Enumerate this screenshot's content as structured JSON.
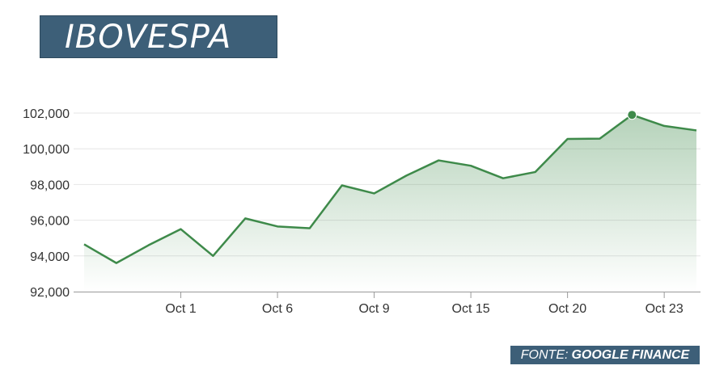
{
  "header": {
    "title": "IBOVESPA"
  },
  "footer": {
    "source_prefix": "FONTE:",
    "source_name": "GOOGLE FINANCE"
  },
  "colors": {
    "title_bg": "#3d5f78",
    "line": "#3e8a4a",
    "fill": "#3e8a4a",
    "grid": "#e6e6e6",
    "axis": "#999999"
  },
  "chart_data": {
    "type": "area",
    "title": "IBOVESPA",
    "xlabel": "",
    "ylabel": "",
    "ylim": [
      92000,
      102000
    ],
    "yticks": [
      92000,
      94000,
      96000,
      98000,
      100000,
      102000
    ],
    "ytick_labels": [
      "92,000",
      "94,000",
      "96,000",
      "98,000",
      "100,000",
      "102,000"
    ],
    "xticks": [
      {
        "index": 3,
        "label": "Oct 1"
      },
      {
        "index": 6,
        "label": "Oct 6"
      },
      {
        "index": 9,
        "label": "Oct 9"
      },
      {
        "index": 12,
        "label": "Oct 15"
      },
      {
        "index": 15,
        "label": "Oct 20"
      },
      {
        "index": 18,
        "label": "Oct 23"
      }
    ],
    "grid": true,
    "highlight_index": 17,
    "series": [
      {
        "values": [
          94650,
          93600,
          94600,
          95500,
          94000,
          96100,
          95650,
          95550,
          97950,
          97500,
          98500,
          99350,
          99050,
          98350,
          98700,
          100550,
          100570,
          101900,
          101280,
          101030
        ]
      }
    ]
  }
}
